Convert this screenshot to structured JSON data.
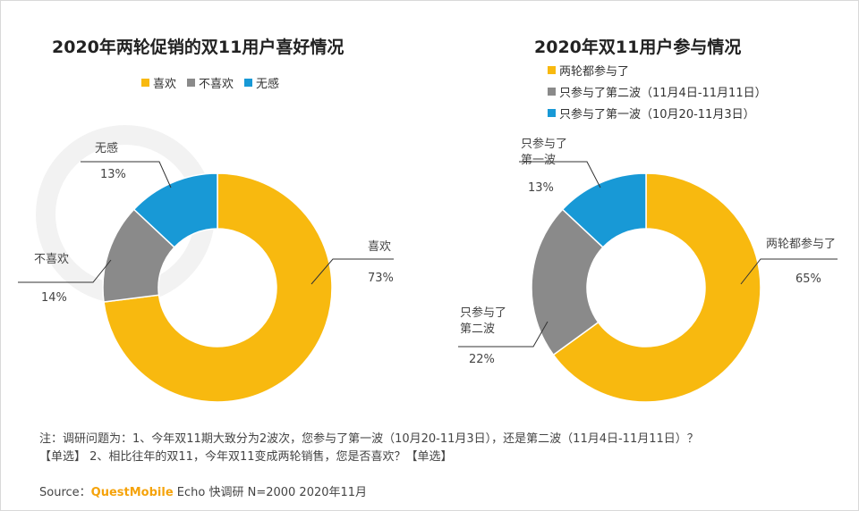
{
  "chart_data": [
    {
      "type": "pie",
      "title": "2020年两轮促销的双11用户喜好情况",
      "categories": [
        "喜欢",
        "不喜欢",
        "无感"
      ],
      "values": [
        73,
        14,
        13
      ],
      "value_labels": [
        "73%",
        "14%",
        "13%"
      ],
      "colors": [
        "#f8b90f",
        "#8a8a8a",
        "#1899d6"
      ],
      "legend": "top"
    },
    {
      "type": "pie",
      "title": "2020年双11用户参与情况",
      "categories": [
        "两轮都参与了",
        "只参与了第二波",
        "只参与了第一波"
      ],
      "legend_labels": [
        "两轮都参与了",
        "只参与了第二波（11月4日-11月11日）",
        "只参与了第一波（10月20-11月3日）"
      ],
      "callout_lines": [
        [
          "两轮都参与了"
        ],
        [
          "只参与了",
          "第二波"
        ],
        [
          "只参与了",
          "第一波"
        ]
      ],
      "values": [
        65,
        22,
        13
      ],
      "value_labels": [
        "65%",
        "22%",
        "13%"
      ],
      "colors": [
        "#f8b90f",
        "#8a8a8a",
        "#1899d6"
      ],
      "legend": "top-left"
    }
  ],
  "note": {
    "line1": "注：调研问题为：1、今年双11期大致分为2波次，您参与了第一波（10月20-11月3日），还是第二波（11月4日-11月11日）？",
    "line2": "【单选】 2、相比往年的双11，今年双11变成两轮销售，您是否喜欢？【单选】"
  },
  "source": {
    "prefix": "Source：",
    "brand": "QuestMobile",
    "suffix": " Echo 快调研 N=2000 2020年11月"
  }
}
